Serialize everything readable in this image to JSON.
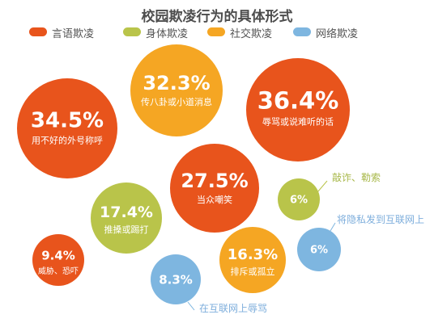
{
  "chart_data": {
    "type": "bubble",
    "title": "校园欺凌行为的具体形式",
    "legend": [
      {
        "name": "言语欺凌",
        "color": "#e8541c"
      },
      {
        "name": "身体欺凌",
        "color": "#b9c44a"
      },
      {
        "name": "社交欺凌",
        "color": "#f5a623"
      },
      {
        "name": "网络欺凌",
        "color": "#7eb6e0"
      }
    ],
    "points": [
      {
        "value": "34.5%",
        "label": "用不好的外号称呼",
        "category": "言语欺凌"
      },
      {
        "value": "32.3%",
        "label": "传八卦或小道消息",
        "category": "社交欺凌"
      },
      {
        "value": "36.4%",
        "label": "辱骂或说难听的话",
        "category": "言语欺凌"
      },
      {
        "value": "27.5%",
        "label": "当众嘲笑",
        "category": "言语欺凌"
      },
      {
        "value": "17.4%",
        "label": "推搡或踢打",
        "category": "身体欺凌"
      },
      {
        "value": "6%",
        "label": "敲诈、勒索",
        "category": "身体欺凌"
      },
      {
        "value": "6%",
        "label": "将隐私发到互联网上",
        "category": "网络欺凌"
      },
      {
        "value": "9.4%",
        "label": "威胁、恐吓",
        "category": "言语欺凌"
      },
      {
        "value": "16.3%",
        "label": "排斥或孤立",
        "category": "社交欺凌"
      },
      {
        "value": "8.3%",
        "label": "在互联网上辱骂",
        "category": "网络欺凌"
      }
    ]
  }
}
